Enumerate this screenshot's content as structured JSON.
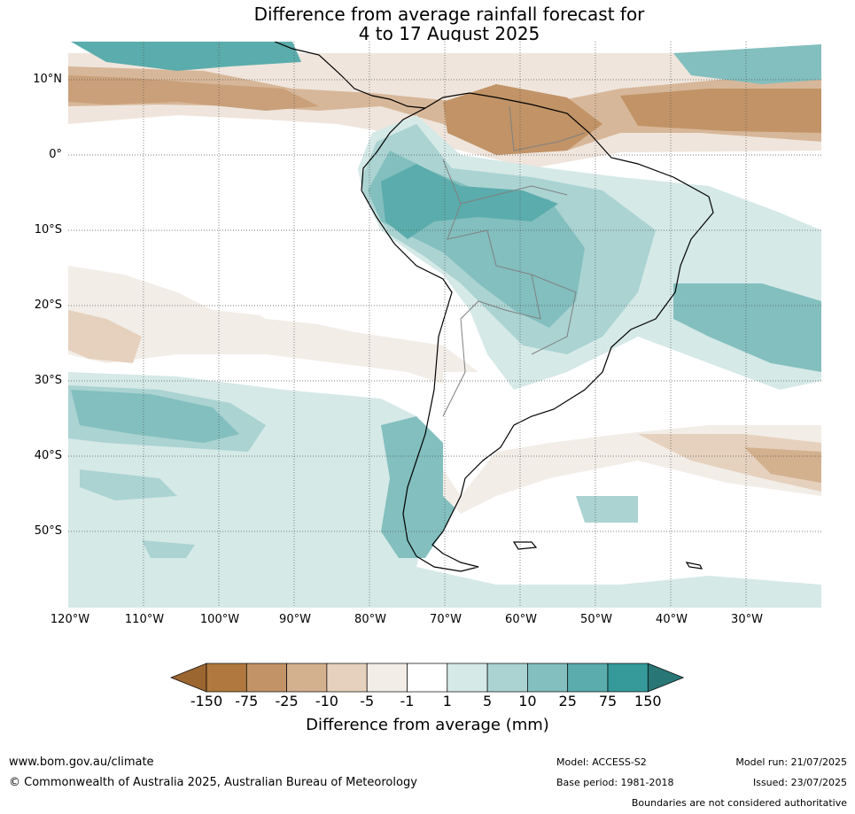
{
  "title": {
    "line1": "Difference from average rainfall forecast for",
    "line2": "4 to 17 August 2025"
  },
  "map": {
    "latitude_labels": [
      "10°N",
      "0°",
      "10°S",
      "20°S",
      "30°S",
      "40°S",
      "50°S"
    ],
    "longitude_labels": [
      "120°W",
      "110°W",
      "100°W",
      "90°W",
      "80°W",
      "70°W",
      "60°W",
      "50°W",
      "40°W",
      "30°W"
    ]
  },
  "colorbar": {
    "label": "Difference from average (mm)",
    "ticks": [
      "-150",
      "-75",
      "-25",
      "-10",
      "-5",
      "-1",
      "1",
      "5",
      "10",
      "25",
      "75",
      "150"
    ],
    "colors": [
      "#9c6630",
      "#b0783f",
      "#c19366",
      "#d3b08e",
      "#e5d1bd",
      "#f2ede7",
      "#ffffff",
      "#d5e9e7",
      "#aad3d2",
      "#82bfbe",
      "#5bacac",
      "#359a99",
      "#297676"
    ]
  },
  "footer": {
    "url": "www.bom.gov.au/climate",
    "copyright": "© Commonwealth of Australia 2025, Australian Bureau of Meteorology",
    "model": "Model: ACCESS-S2",
    "base_period": "Base period: 1981-2018",
    "model_run": "Model run: 21/07/2025",
    "issued": "Issued: 23/07/2025",
    "boundaries": "Boundaries are not considered authoritative"
  }
}
